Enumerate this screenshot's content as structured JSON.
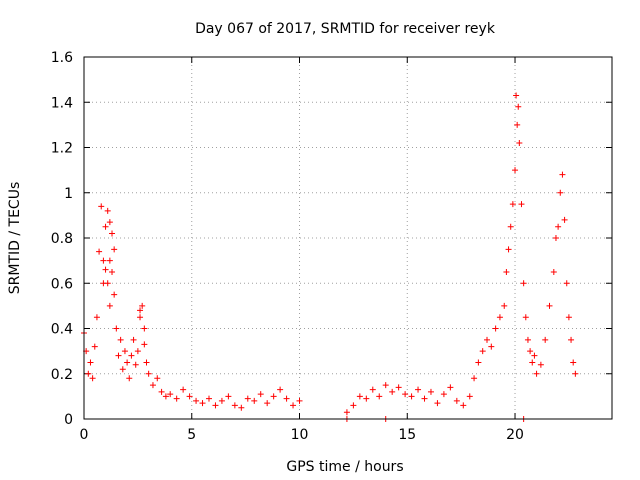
{
  "chart_data": {
    "type": "scatter",
    "title": "Day 067 of 2017, SRMTID for receiver reyk",
    "xlabel": "GPS time / hours",
    "ylabel": "SRMTID / TECUs",
    "xlim": [
      0,
      24.5
    ],
    "ylim": [
      0,
      1.6
    ],
    "xticks": [
      0,
      5,
      10,
      15,
      20
    ],
    "xtick_labels": [
      "0",
      "5",
      "10",
      "15",
      "20"
    ],
    "yticks": [
      0,
      0.2,
      0.4,
      0.6,
      0.8,
      1,
      1.2,
      1.4,
      1.6
    ],
    "ytick_labels": [
      "0",
      "0.2",
      "0.4",
      "0.6",
      "0.8",
      "1",
      "1.2",
      "1.4",
      "1.6"
    ],
    "grid": true,
    "marker": "+",
    "color": "#ff0000",
    "series": [
      {
        "name": "reyk",
        "x": [
          0.0,
          0.1,
          0.2,
          0.3,
          0.4,
          0.5,
          0.6,
          0.7,
          0.8,
          0.9,
          1.0,
          1.1,
          1.2,
          1.3,
          1.4,
          1.5,
          1.6,
          1.7,
          1.8,
          1.9,
          2.0,
          2.1,
          2.2,
          2.3,
          2.4,
          2.5,
          2.6,
          2.7,
          2.8,
          2.9,
          3.0,
          3.2,
          3.4,
          3.6,
          3.8,
          4.0,
          4.3,
          4.6,
          4.9,
          5.2,
          5.5,
          5.8,
          6.1,
          6.4,
          6.7,
          7.0,
          7.3,
          7.6,
          7.9,
          8.2,
          8.5,
          8.8,
          9.1,
          9.4,
          9.7,
          10.0,
          12.2,
          12.5,
          12.8,
          13.1,
          13.4,
          13.7,
          14.0,
          14.3,
          14.6,
          14.9,
          15.2,
          15.5,
          15.8,
          16.1,
          16.4,
          16.7,
          17.0,
          17.3,
          17.6,
          17.9,
          18.1,
          18.3,
          18.5,
          18.7,
          18.9,
          19.1,
          19.3,
          19.5,
          19.6,
          19.7,
          19.8,
          19.9,
          20.0,
          20.05,
          20.1,
          20.15,
          20.2,
          20.3,
          20.4,
          20.5,
          20.6,
          20.7,
          20.8,
          20.9,
          21.0,
          21.2,
          21.4,
          21.6,
          21.8,
          21.9,
          22.0,
          22.1,
          22.2,
          22.3,
          22.4,
          22.5,
          22.6,
          22.7,
          22.8,
          1.0,
          1.2,
          1.3,
          0.9,
          1.1,
          1.4,
          2.6,
          2.8,
          1.2,
          14.0,
          12.2,
          20.4
        ],
        "y": [
          0.38,
          0.3,
          0.2,
          0.25,
          0.18,
          0.32,
          0.45,
          0.74,
          0.94,
          0.6,
          0.85,
          0.92,
          0.5,
          0.65,
          0.55,
          0.4,
          0.28,
          0.35,
          0.22,
          0.3,
          0.25,
          0.18,
          0.28,
          0.35,
          0.24,
          0.3,
          0.45,
          0.5,
          0.33,
          0.25,
          0.2,
          0.15,
          0.18,
          0.12,
          0.1,
          0.11,
          0.09,
          0.13,
          0.1,
          0.08,
          0.07,
          0.09,
          0.06,
          0.08,
          0.1,
          0.06,
          0.05,
          0.09,
          0.08,
          0.11,
          0.07,
          0.1,
          0.13,
          0.09,
          0.06,
          0.08,
          0.03,
          0.06,
          0.1,
          0.09,
          0.13,
          0.1,
          0.15,
          0.12,
          0.14,
          0.11,
          0.1,
          0.13,
          0.09,
          0.12,
          0.07,
          0.11,
          0.14,
          0.08,
          0.06,
          0.1,
          0.18,
          0.25,
          0.3,
          0.35,
          0.32,
          0.4,
          0.45,
          0.5,
          0.65,
          0.75,
          0.85,
          0.95,
          1.1,
          1.43,
          1.3,
          1.38,
          1.22,
          0.95,
          0.6,
          0.45,
          0.35,
          0.3,
          0.25,
          0.28,
          0.2,
          0.24,
          0.35,
          0.5,
          0.65,
          0.8,
          0.85,
          1.0,
          1.08,
          0.88,
          0.6,
          0.45,
          0.35,
          0.25,
          0.2,
          0.66,
          0.87,
          0.82,
          0.7,
          0.6,
          0.75,
          0.48,
          0.4,
          0.7,
          0.0,
          0.0,
          0.0
        ]
      }
    ]
  }
}
